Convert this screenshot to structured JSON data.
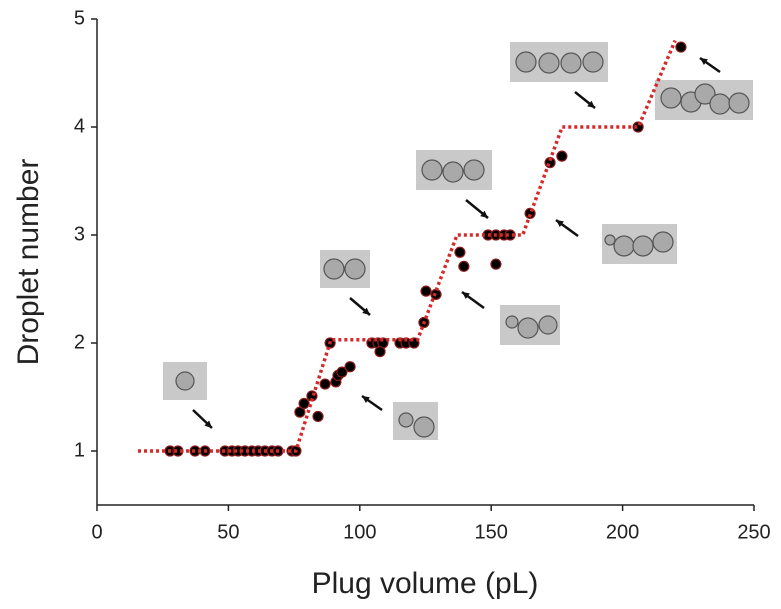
{
  "chart_data": {
    "type": "scatter",
    "xlabel": "Plug volume (pL)",
    "ylabel": "Droplet number",
    "xlim": [
      0,
      250
    ],
    "ylim": [
      0.5,
      5
    ],
    "xticks": [
      0,
      50,
      100,
      150,
      200,
      250
    ],
    "yticks": [
      1,
      2,
      3,
      4,
      5
    ],
    "series": [
      {
        "mode": "markers",
        "color": "#000000",
        "edgecolor": "#8b1a1a",
        "x": [
          27.8,
          30.8,
          37.3,
          41.1,
          48.7,
          51.4,
          53.7,
          56.3,
          59.0,
          61.3,
          63.9,
          66.6,
          68.9,
          74.2,
          75.7,
          77.2,
          78.8,
          81.8,
          84.1,
          86.8,
          88.7,
          90.9,
          91.7,
          93.2,
          96.3,
          104.6,
          106.9,
          108.8,
          107.7,
          115.3,
          117.6,
          120.6,
          124.4,
          125.2,
          129.0,
          138.1,
          139.6,
          148.8,
          151.8,
          154.9,
          157.2,
          151.8,
          164.8,
          172.4,
          176.9,
          205.9,
          222.2
        ],
        "values": [
          1,
          1,
          1,
          1,
          1,
          1,
          1,
          1,
          1,
          1,
          1,
          1,
          1,
          1,
          1,
          1.36,
          1.44,
          1.51,
          1.32,
          1.62,
          2.0,
          1.64,
          1.7,
          1.73,
          1.78,
          2.0,
          2.0,
          2.0,
          1.92,
          2.0,
          2.0,
          2.0,
          2.19,
          2.48,
          2.45,
          2.84,
          2.71,
          3.0,
          3.0,
          3.0,
          3.0,
          2.73,
          3.2,
          3.67,
          3.73,
          4.0,
          4.74
        ]
      },
      {
        "mode": "dotted-line",
        "color": "#d42a2a",
        "x": [
          15.6,
          75.7,
          89,
          122,
          137,
          162,
          177,
          206,
          220
        ],
        "values": [
          1,
          1,
          2.03,
          2.03,
          3.0,
          3.0,
          4.0,
          4.0,
          4.8
        ]
      }
    ]
  }
}
